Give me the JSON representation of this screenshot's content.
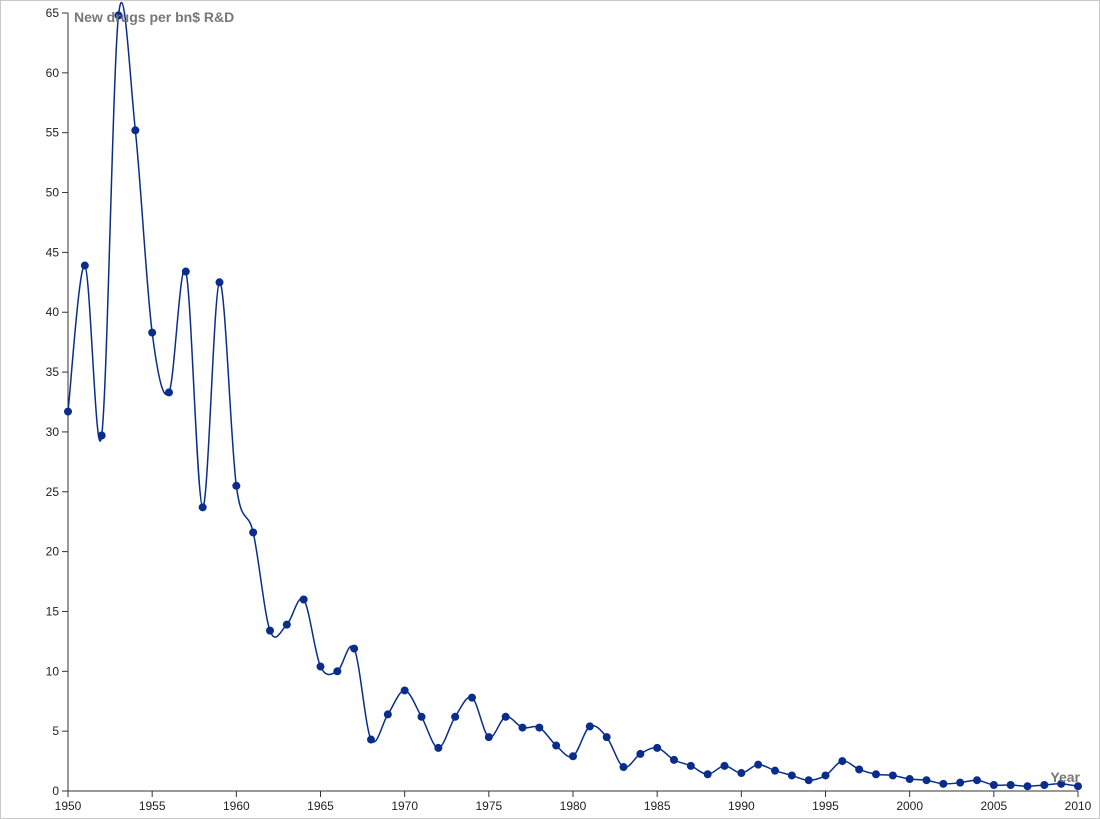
{
  "chart_data": {
    "type": "line",
    "y_label": "New drugs per bn$ R&D",
    "x_label": "Year",
    "x": [
      1950,
      1951,
      1952,
      1953,
      1954,
      1955,
      1956,
      1957,
      1958,
      1959,
      1960,
      1961,
      1962,
      1963,
      1964,
      1965,
      1966,
      1967,
      1968,
      1969,
      1970,
      1971,
      1972,
      1973,
      1974,
      1975,
      1976,
      1977,
      1978,
      1979,
      1980,
      1981,
      1982,
      1983,
      1984,
      1985,
      1986,
      1987,
      1988,
      1989,
      1990,
      1991,
      1992,
      1993,
      1994,
      1995,
      1996,
      1997,
      1998,
      1999,
      2000,
      2001,
      2002,
      2003,
      2004,
      2005,
      2006,
      2007,
      2008,
      2009,
      2010
    ],
    "series": [
      {
        "name": "New drugs per bn$ R&D",
        "color": "#0a2d8c",
        "values": [
          31.7,
          43.9,
          29.7,
          64.8,
          55.2,
          38.3,
          33.3,
          43.4,
          23.7,
          42.5,
          25.5,
          21.6,
          13.4,
          13.9,
          16.0,
          10.4,
          10.0,
          11.9,
          4.3,
          6.4,
          8.4,
          6.2,
          3.6,
          6.2,
          7.8,
          4.5,
          6.2,
          5.3,
          5.3,
          3.8,
          2.9,
          5.4,
          4.5,
          2.0,
          3.1,
          3.6,
          2.6,
          2.1,
          1.4,
          2.1,
          1.5,
          2.2,
          1.7,
          1.3,
          0.9,
          1.3,
          2.5,
          1.8,
          1.4,
          1.3,
          1.0,
          0.9,
          0.6,
          0.7,
          0.9,
          0.5,
          0.5,
          0.4,
          0.5,
          0.6,
          0.4
        ]
      }
    ],
    "xlim": [
      1950,
      2010
    ],
    "ylim": [
      0,
      65
    ],
    "xticks": [
      1950,
      1955,
      1960,
      1965,
      1970,
      1975,
      1980,
      1985,
      1990,
      1995,
      2000,
      2005,
      2010
    ],
    "yticks": [
      0,
      5,
      10,
      15,
      20,
      25,
      30,
      35,
      40,
      45,
      50,
      55,
      60,
      65
    ]
  }
}
